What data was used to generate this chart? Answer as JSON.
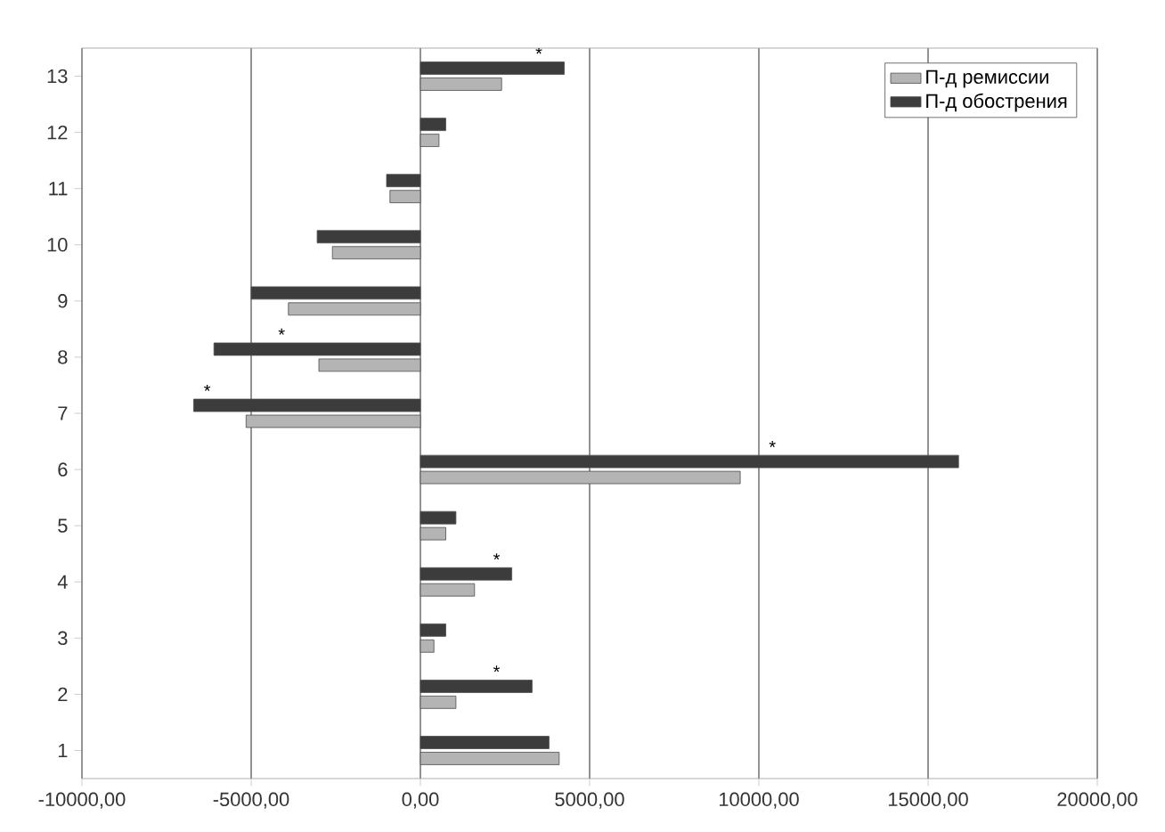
{
  "chart_data": {
    "type": "bar",
    "orientation": "horizontal",
    "categories": [
      "13",
      "12",
      "11",
      "10",
      "9",
      "8",
      "7",
      "6",
      "5",
      "4",
      "3",
      "2",
      "1"
    ],
    "series": [
      {
        "name": "П-д ремиссии",
        "color": "#b4b4b4",
        "values": [
          2400,
          550,
          -900,
          -2600,
          -3900,
          -3000,
          -5150,
          9450,
          750,
          1600,
          400,
          1050,
          4100
        ]
      },
      {
        "name": "П-д обострения",
        "color": "#3c3c3c",
        "values": [
          4250,
          750,
          -1000,
          -3050,
          -5000,
          -6100,
          -6700,
          15900,
          1050,
          2700,
          750,
          3300,
          3800
        ]
      }
    ],
    "xlim": [
      -10000,
      20000
    ],
    "xticks": [
      {
        "value": -10000,
        "label": "-10000,00"
      },
      {
        "value": -5000,
        "label": "-5000,00"
      },
      {
        "value": 0,
        "label": "0,00"
      },
      {
        "value": 5000,
        "label": "5000,00"
      },
      {
        "value": 10000,
        "label": "10000,00"
      },
      {
        "value": 15000,
        "label": "15000,00"
      },
      {
        "value": 20000,
        "label": "20000,00"
      }
    ],
    "grid": "x",
    "legend": "top right",
    "annotations": [
      {
        "text": "*",
        "x": 3500,
        "y": "13"
      },
      {
        "text": "*",
        "x": -4100,
        "y": "8"
      },
      {
        "text": "*",
        "x": -6300,
        "y": "7"
      },
      {
        "text": "*",
        "x": 10400,
        "y": "6"
      },
      {
        "text": "*",
        "x": 2250,
        "y": "4"
      },
      {
        "text": "*",
        "x": 2250,
        "y": "2"
      }
    ]
  }
}
